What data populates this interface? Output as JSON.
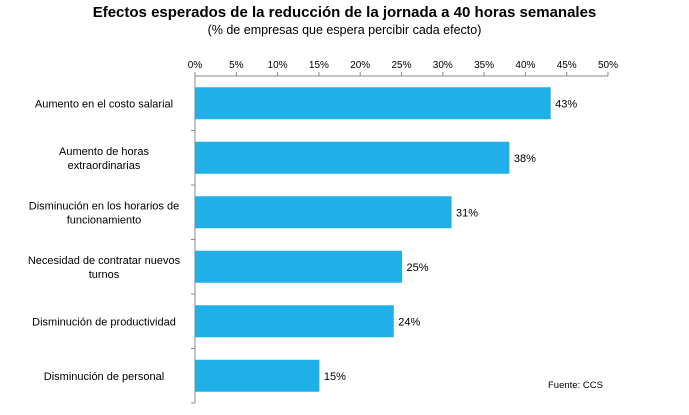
{
  "chart_data": {
    "type": "bar",
    "orientation": "horizontal",
    "title": "Efectos esperados de la reducción de la jornada a 40 horas semanales",
    "subtitle": "(% de empresas que espera percibir cada efecto)",
    "categories": [
      [
        "Aumento en el costo salarial"
      ],
      [
        "Aumento de horas",
        "extraordinarias"
      ],
      [
        "Disminución en los horarios de",
        "funcionamiento"
      ],
      [
        "Necesidad de contratar nuevos",
        "turnos"
      ],
      [
        "Disminución de productividad"
      ],
      [
        "Disminución de personal"
      ]
    ],
    "values": [
      43,
      38,
      31,
      25,
      24,
      15
    ],
    "data_labels": [
      "43%",
      "38%",
      "31%",
      "25%",
      "24%",
      "15%"
    ],
    "xlim": [
      0,
      50
    ],
    "x_ticks": [
      "0%",
      "5%",
      "10%",
      "15%",
      "20%",
      "25%",
      "30%",
      "35%",
      "40%",
      "45%",
      "50%"
    ],
    "x_axis_position": "top",
    "grid": false,
    "bar_color": "#1FB0EA",
    "source": "Fuente:  CCS"
  }
}
